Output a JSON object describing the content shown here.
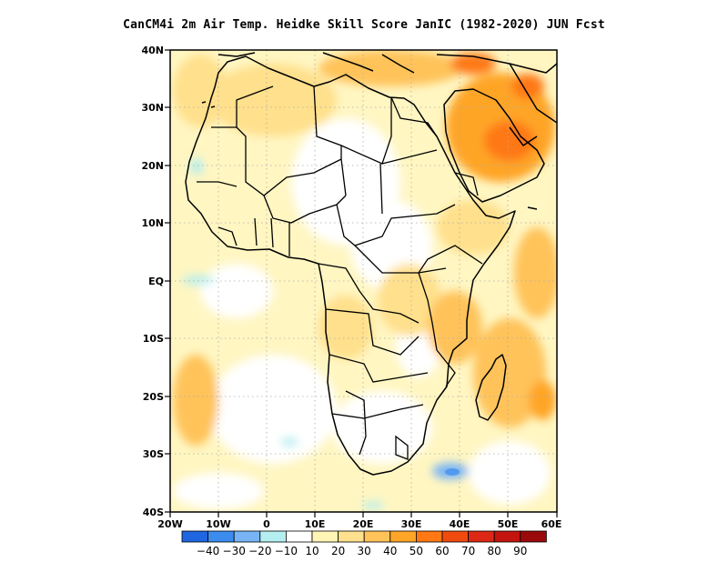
{
  "title": "CanCM4i  2m Air Temp. Heidke Skill Score JanIC (1982-2020) JUN Fcst",
  "map": {
    "lon_range": [
      -20,
      60
    ],
    "lat_range": [
      -40,
      40
    ],
    "lon_ticks": [
      "20W",
      "10W",
      "0",
      "10E",
      "20E",
      "30E",
      "40E",
      "50E",
      "60E"
    ],
    "lat_ticks": [
      "40N",
      "30N",
      "20N",
      "10N",
      "EQ",
      "10S",
      "20S",
      "30S",
      "40S"
    ],
    "grid": true
  },
  "colorbar": {
    "colors": [
      "#1f66e0",
      "#3c8cf0",
      "#78b4f5",
      "#b4eef0",
      "#ffffff",
      "#fff5b4",
      "#ffe08c",
      "#ffc35a",
      "#ffa528",
      "#ff7814",
      "#f04b0f",
      "#dc2814",
      "#c3140f",
      "#9b0a0a"
    ],
    "labels": [
      "-40",
      "-30",
      "-20",
      "-10",
      "10",
      "20",
      "30",
      "40",
      "50",
      "60",
      "70",
      "80",
      "90"
    ]
  }
}
